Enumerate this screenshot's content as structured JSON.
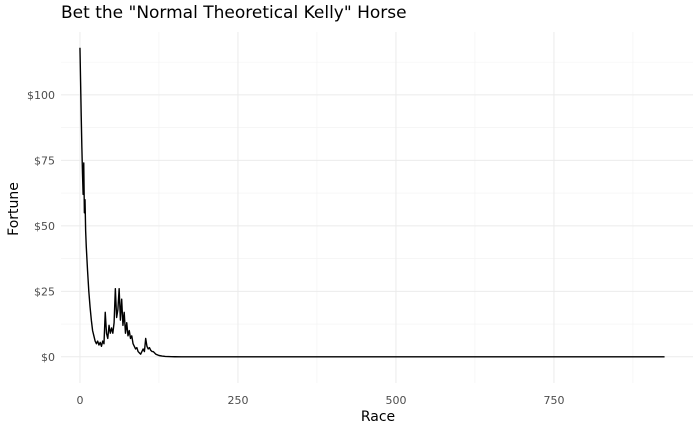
{
  "chart_data": {
    "type": "line",
    "title": "Bet the \"Normal Theoretical Kelly\" Horse",
    "xlabel": "Race",
    "ylabel": "Fortune",
    "xlim": [
      -30,
      970
    ],
    "ylim": [
      -10,
      124
    ],
    "x_ticks": [
      0,
      250,
      500,
      750
    ],
    "x_tick_labels": [
      "0",
      "250",
      "500",
      "750"
    ],
    "y_ticks": [
      0,
      25,
      50,
      75,
      100
    ],
    "y_tick_labels": [
      "$0",
      "$25",
      "$50",
      "$75",
      "$100"
    ],
    "grid": true,
    "line_color": "#000000",
    "series": [
      {
        "x": [
          0,
          1,
          2,
          3,
          4,
          5,
          6,
          7,
          8,
          9,
          10,
          12,
          14,
          16,
          18,
          20,
          22,
          24,
          26,
          28,
          30,
          32,
          34,
          36,
          38,
          40,
          42,
          44,
          46,
          48,
          50,
          52,
          54,
          56,
          58,
          60,
          62,
          64,
          66,
          68,
          70,
          72,
          74,
          76,
          78,
          80,
          82,
          84,
          86,
          88,
          90,
          92,
          94,
          96,
          98,
          100,
          102,
          104,
          106,
          108,
          110,
          112,
          114,
          116,
          118,
          120,
          125,
          130,
          135,
          140,
          145,
          150,
          160,
          180,
          200,
          250,
          300,
          400,
          500,
          600,
          700,
          800,
          925
        ],
        "y": [
          118,
          105,
          92,
          80,
          70,
          62,
          74,
          55,
          60,
          48,
          42,
          33,
          25,
          19,
          14,
          10,
          8,
          6,
          5,
          6,
          4.5,
          5.5,
          4,
          6,
          5,
          17,
          9,
          7,
          12,
          9,
          11,
          9,
          13,
          26,
          15,
          18,
          26,
          14,
          22,
          12,
          17,
          9,
          13,
          8,
          10,
          7,
          8,
          5,
          4,
          3,
          3.5,
          2,
          1.5,
          1,
          2,
          3,
          2,
          7,
          4,
          3,
          3.5,
          2.5,
          2,
          2,
          1.5,
          1,
          0.5,
          0.3,
          0.15,
          0.1,
          0.05,
          0.02,
          0.01,
          0,
          0,
          0,
          0,
          0,
          0,
          0,
          0,
          0,
          0
        ]
      }
    ]
  }
}
